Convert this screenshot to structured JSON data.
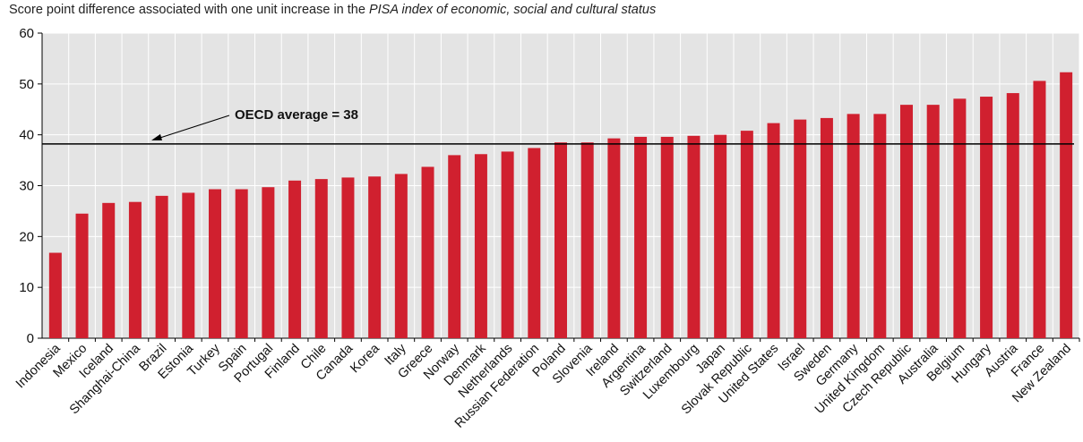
{
  "chart_data": {
    "type": "bar",
    "subtitle_prefix": "Score point difference associated with one unit increase in the ",
    "subtitle_italic": "PISA index of economic, social and cultural status",
    "xlabel": "",
    "ylabel": "",
    "ylim": [
      0,
      60
    ],
    "yticks": [
      0,
      10,
      20,
      30,
      40,
      50,
      60
    ],
    "grid": true,
    "bar_color": "#d0202f",
    "plot_background": "#e4e4e4",
    "categories": [
      "Indonesia",
      "Mexico",
      "Iceland",
      "Shanghai-China",
      "Brazil",
      "Estonia",
      "Turkey",
      "Spain",
      "Portugal",
      "Finland",
      "Chile",
      "Canada",
      "Korea",
      "Italy",
      "Greece",
      "Norway",
      "Denmark",
      "Netherlands",
      "Russian Federation",
      "Poland",
      "Slovenia",
      "Ireland",
      "Argentina",
      "Switzerland",
      "Luxembourg",
      "Japan",
      "Slovak Republic",
      "United States",
      "Israel",
      "Sweden",
      "Germany",
      "United Kingdom",
      "Czech Republic",
      "Australia",
      "Belgium",
      "Hungary",
      "Austria",
      "France",
      "New Zealand"
    ],
    "values": [
      16.8,
      24.5,
      26.6,
      26.8,
      28.0,
      28.6,
      29.3,
      29.3,
      29.7,
      31.0,
      31.3,
      31.6,
      31.8,
      32.3,
      33.7,
      36.0,
      36.2,
      36.7,
      37.4,
      38.5,
      38.5,
      39.3,
      39.6,
      39.6,
      39.8,
      40.0,
      40.8,
      42.3,
      43.0,
      43.3,
      44.1,
      44.1,
      45.9,
      45.9,
      47.1,
      47.5,
      48.2,
      50.6,
      52.3
    ],
    "reference_line": {
      "value": 38.2,
      "label": "OECD average = 38"
    }
  }
}
